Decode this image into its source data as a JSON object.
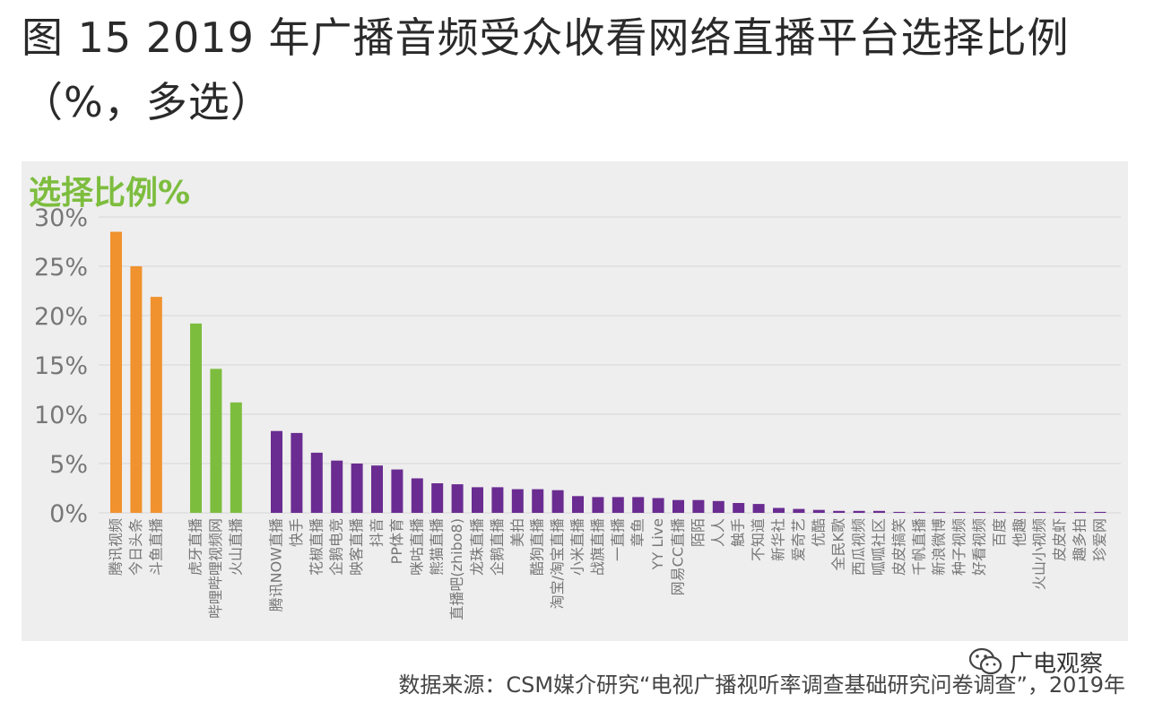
{
  "title": "图 15 2019 年广播音频受众收看网络直播平台选择比例（%，多选）",
  "source": "数据来源：CSM媒介研究“电视广播视听率调查基础研究问卷调查”，2019年",
  "watermark": {
    "text": "广电观察",
    "icon": "wechat-icon"
  },
  "colors": {
    "orange": "#f0922e",
    "green": "#7dbd3e",
    "purple": "#6a2c91",
    "grid": "#d7d7d7",
    "panel": "#eeeeee",
    "axis_text": "#777777"
  },
  "chart_data": {
    "type": "bar",
    "ylabel": "选择比例%",
    "ylim": [
      0,
      30
    ],
    "yticks": [
      "0%",
      "5%",
      "10%",
      "15%",
      "20%",
      "25%",
      "30%"
    ],
    "groups": [
      {
        "color": "orange",
        "categories": [
          "腾讯视频",
          "今日头条",
          "斗鱼直播"
        ],
        "values": [
          28.5,
          25.0,
          21.9
        ]
      },
      {
        "color": "green",
        "categories": [
          "虎牙直播",
          "哔哩哔哩视频网",
          "火山直播"
        ],
        "values": [
          19.2,
          14.6,
          11.2
        ]
      },
      {
        "color": "purple",
        "categories": [
          "腾讯NOW直播",
          "快手",
          "花椒直播",
          "企鹅电竞",
          "映客直播",
          "抖音",
          "PP体育",
          "咪咕直播",
          "熊猫直播",
          "直播吧(zhibo8)",
          "龙珠直播",
          "企鹅直播",
          "美拍",
          "酷狗直播",
          "淘宝/淘宝直播",
          "小米直播",
          "战旗直播",
          "一直播",
          "章鱼",
          "YY Live",
          "网易CC直播",
          "陌陌",
          "人人",
          "触手",
          "不知道",
          "新华社",
          "爱奇艺",
          "优酷",
          "全民K歌",
          "西瓜视频",
          "呱呱社区",
          "皮皮搞笑",
          "千帆直播",
          "新浪微博",
          "种子视频",
          "好看视频",
          "百度",
          "他趣",
          "火山小视频",
          "皮皮虾",
          "趣多拍",
          "珍爱网"
        ],
        "values": [
          8.3,
          8.1,
          6.1,
          5.3,
          5.0,
          4.8,
          4.4,
          3.5,
          3.0,
          2.9,
          2.6,
          2.6,
          2.4,
          2.4,
          2.3,
          1.7,
          1.6,
          1.6,
          1.6,
          1.5,
          1.3,
          1.3,
          1.2,
          1.0,
          0.9,
          0.5,
          0.4,
          0.3,
          0.2,
          0.2,
          0.2,
          0.1,
          0.1,
          0.1,
          0.1,
          0.1,
          0.1,
          0.1,
          0.1,
          0.1,
          0.1,
          0.1
        ]
      }
    ]
  }
}
